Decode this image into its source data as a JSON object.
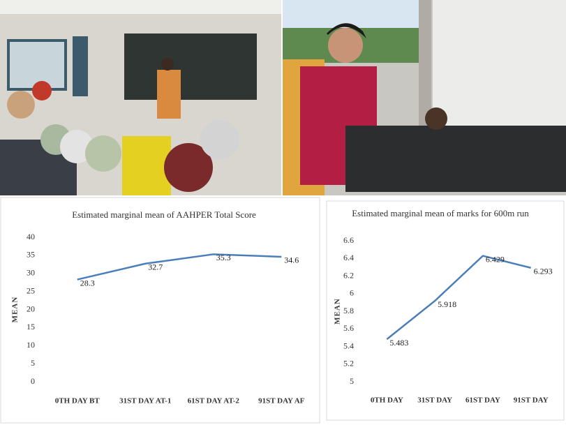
{
  "chart_data": [
    {
      "type": "line",
      "title": "Estimated marginal mean of AAHPER Total Score",
      "y_label": "MEAN",
      "categories": [
        "0TH DAY BT",
        "31ST DAY AT-1",
        "61ST DAY AT-2",
        "91ST DAY AF"
      ],
      "values": [
        28.3,
        32.7,
        35.3,
        34.6
      ],
      "color": "#4a7ebb",
      "ylim": [
        0,
        40
      ],
      "yticks": [
        0,
        5,
        10,
        15,
        20,
        25,
        30,
        35,
        40
      ],
      "grid": false
    },
    {
      "type": "line",
      "title": "Estimated marginal mean of marks for 600m run",
      "y_label": "MEAN",
      "categories": [
        "0TH DAY",
        "31ST DAY",
        "61ST DAY",
        "91ST DAY"
      ],
      "values": [
        5.483,
        5.918,
        6.429,
        6.293
      ],
      "color": "#4a7ebb",
      "ylim": [
        5,
        6.6
      ],
      "yticks": [
        5,
        5.2,
        5.4,
        5.6,
        5.8,
        6,
        6.2,
        6.4,
        6.6
      ],
      "grid": false
    }
  ]
}
